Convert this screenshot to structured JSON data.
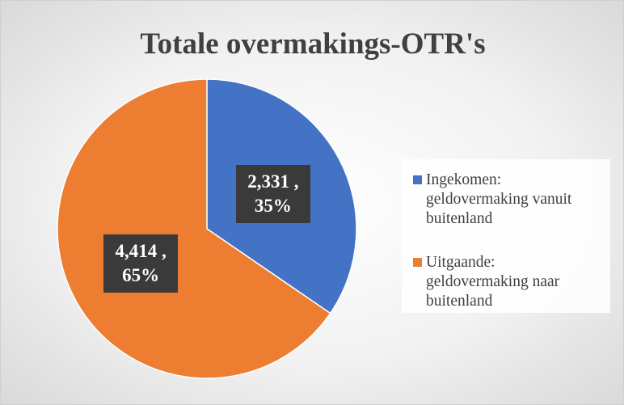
{
  "chart_data": {
    "type": "pie",
    "title": "Totale overmakings-OTR's",
    "categories": [
      "Ingekomen: geldovermaking vanuit buitenland",
      "Uitgaande: geldovermaking naar buitenland"
    ],
    "values": [
      2331,
      4414
    ],
    "value_labels": [
      "2,331 , 35%",
      "4,414 , 65%"
    ],
    "colors": [
      "#4472c4",
      "#ed7d31"
    ],
    "legend": "right"
  }
}
